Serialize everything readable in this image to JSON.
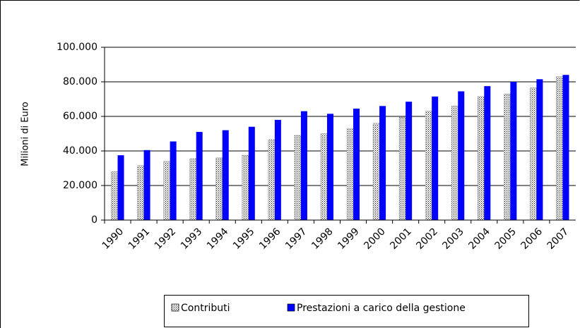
{
  "chart_data": {
    "type": "bar",
    "y_label": "Milioni di Euro",
    "categories": [
      "1990",
      "1991",
      "1992",
      "1993",
      "1994",
      "1995",
      "1996",
      "1997",
      "1998",
      "1999",
      "2000",
      "2001",
      "2002",
      "2003",
      "2004",
      "2005",
      "2006",
      "2007"
    ],
    "series": [
      {
        "name": "Contributi",
        "color": "#ffffff",
        "pattern": "dots",
        "values": [
          28000,
          31500,
          34000,
          35500,
          36000,
          37500,
          46500,
          49000,
          50000,
          53000,
          56000,
          59500,
          63000,
          66000,
          71500,
          73000,
          76500,
          83000
        ]
      },
      {
        "name": "Prestazioni a carico della gestione",
        "color": "#0000ff",
        "values": [
          37500,
          40500,
          45500,
          51000,
          52000,
          54000,
          58000,
          63000,
          61500,
          64500,
          66000,
          68500,
          71500,
          74500,
          77500,
          80000,
          81500,
          84000
        ]
      }
    ],
    "ylim": [
      0,
      100000
    ],
    "yticks": [
      0,
      {
        "value": 20000,
        "label": "20.000"
      },
      {
        "value": 40000,
        "label": "40.000"
      },
      {
        "value": 60000,
        "label": "60.000"
      },
      {
        "value": 80000,
        "label": "80.000"
      },
      {
        "value": 100000,
        "label": "100.000"
      }
    ],
    "grid": true,
    "legend": "bottom"
  }
}
